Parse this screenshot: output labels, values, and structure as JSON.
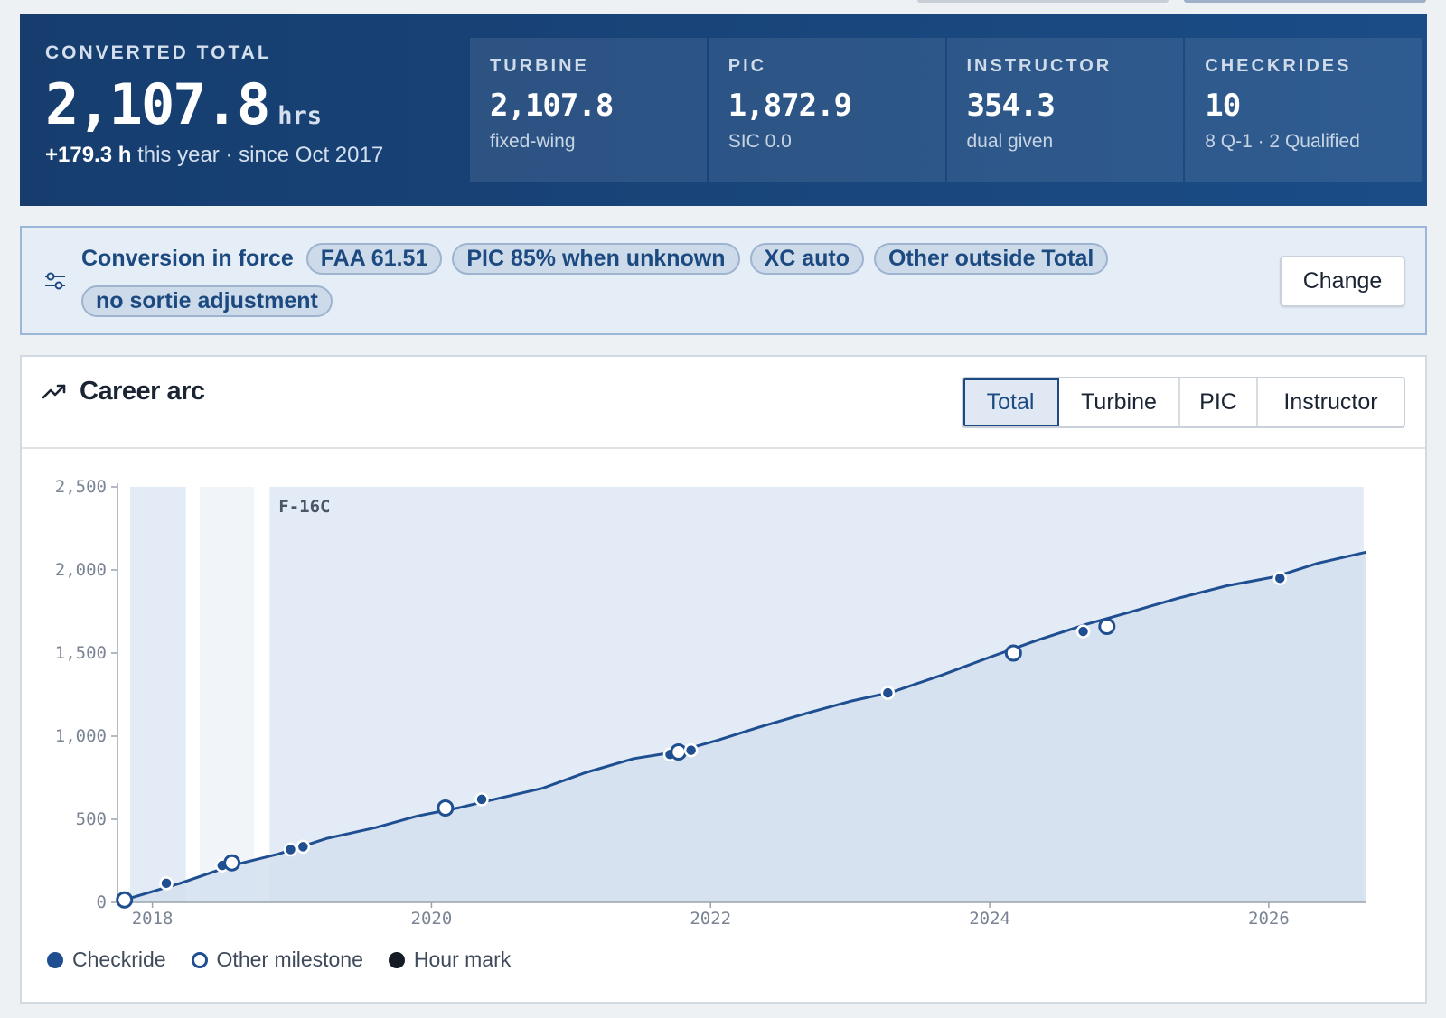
{
  "summary": {
    "eyebrow": "CONVERTED TOTAL",
    "total_value": "2,107.8",
    "total_unit": "hrs",
    "delta": "+179.3 h",
    "delta_suffix": " this year · since Oct 2017",
    "stats": [
      {
        "label": "TURBINE",
        "value": "2,107.8",
        "sub": "fixed-wing"
      },
      {
        "label": "PIC",
        "value": "1,872.9",
        "sub": "SIC 0.0"
      },
      {
        "label": "INSTRUCTOR",
        "value": "354.3",
        "sub": "dual given"
      },
      {
        "label": "CHECKRIDES",
        "value": "10",
        "sub": "8 Q-1 · 2 Qualified"
      }
    ]
  },
  "conversion": {
    "icon": "sliders-icon",
    "title": "Conversion in force",
    "chips": [
      "FAA 61.51",
      "PIC 85% when unknown",
      "XC auto",
      "Other outside Total",
      "no sortie adjustment"
    ],
    "change_label": "Change"
  },
  "career": {
    "icon": "trend-up-icon",
    "title": "Career arc",
    "tabs": [
      "Total",
      "Turbine",
      "PIC",
      "Instructor"
    ],
    "active_tab": "Total",
    "legend": [
      {
        "icon": "filled-dot-icon",
        "label": "Checkride"
      },
      {
        "icon": "ring-dot-icon",
        "label": "Other milestone"
      },
      {
        "icon": "black-dot-icon",
        "label": "Hour mark"
      }
    ]
  },
  "colors": {
    "banner": "#1b4c86",
    "accent": "#1f4f91",
    "chip_bg": "#ccdaea",
    "area_fill": "#d3e0ee",
    "band_fill": "#e3ecf6"
  },
  "chart_data": {
    "type": "area",
    "title": "",
    "xlabel": "",
    "ylabel": "",
    "ylim": [
      0,
      2500
    ],
    "xlim": [
      2017.75,
      2026.7
    ],
    "y_ticks": [
      0,
      500,
      1000,
      1500,
      2000,
      2500
    ],
    "y_tick_labels": [
      "0",
      "500",
      "1,000",
      "1,500",
      "2,000",
      "2,500"
    ],
    "x_ticks": [
      2018,
      2020,
      2022,
      2024,
      2026
    ],
    "x_tick_labels": [
      "2018",
      "2020",
      "2022",
      "2024",
      "2026"
    ],
    "grid": false,
    "legend_position": "bottom-left",
    "bands": [
      {
        "label": "",
        "x0": 2017.84,
        "x1": 2018.24,
        "shade": "mid"
      },
      {
        "label": "",
        "x0": 2018.34,
        "x1": 2018.73,
        "shade": "light"
      },
      {
        "label": "F-16C",
        "x0": 2018.84,
        "x1": 2026.68,
        "shade": "mid"
      }
    ],
    "series": [
      {
        "x": [
          2017.8,
          2018.2,
          2018.57,
          2018.9,
          2019.25,
          2019.6,
          2019.9,
          2020.2,
          2020.45,
          2020.8,
          2021.1,
          2021.45,
          2021.75,
          2022.05,
          2022.35,
          2022.7,
          2023.0,
          2023.3,
          2023.65,
          2024.0,
          2024.35,
          2024.7,
          2025.0,
          2025.35,
          2025.7,
          2026.05,
          2026.35,
          2026.7
        ],
        "y": [
          15,
          115,
          222,
          290,
          385,
          450,
          520,
          570,
          620,
          688,
          780,
          865,
          905,
          975,
          1055,
          1140,
          1210,
          1265,
          1365,
          1475,
          1580,
          1675,
          1745,
          1830,
          1905,
          1960,
          2040,
          2107.8
        ]
      }
    ],
    "markers": [
      {
        "x": 2017.8,
        "y": 15,
        "kind": "milestone"
      },
      {
        "x": 2018.1,
        "y": 115,
        "kind": "checkride"
      },
      {
        "x": 2018.5,
        "y": 222,
        "kind": "checkride"
      },
      {
        "x": 2018.57,
        "y": 238,
        "kind": "milestone"
      },
      {
        "x": 2018.99,
        "y": 318,
        "kind": "checkride"
      },
      {
        "x": 2019.08,
        "y": 335,
        "kind": "checkride"
      },
      {
        "x": 2020.1,
        "y": 568,
        "kind": "milestone"
      },
      {
        "x": 2020.36,
        "y": 620,
        "kind": "checkride"
      },
      {
        "x": 2021.71,
        "y": 890,
        "kind": "checkride"
      },
      {
        "x": 2021.77,
        "y": 905,
        "kind": "milestone"
      },
      {
        "x": 2021.86,
        "y": 915,
        "kind": "checkride"
      },
      {
        "x": 2023.27,
        "y": 1260,
        "kind": "checkride"
      },
      {
        "x": 2024.17,
        "y": 1500,
        "kind": "milestone"
      },
      {
        "x": 2024.67,
        "y": 1630,
        "kind": "checkride"
      },
      {
        "x": 2024.84,
        "y": 1660,
        "kind": "milestone"
      },
      {
        "x": 2026.08,
        "y": 1950,
        "kind": "checkride"
      }
    ]
  }
}
